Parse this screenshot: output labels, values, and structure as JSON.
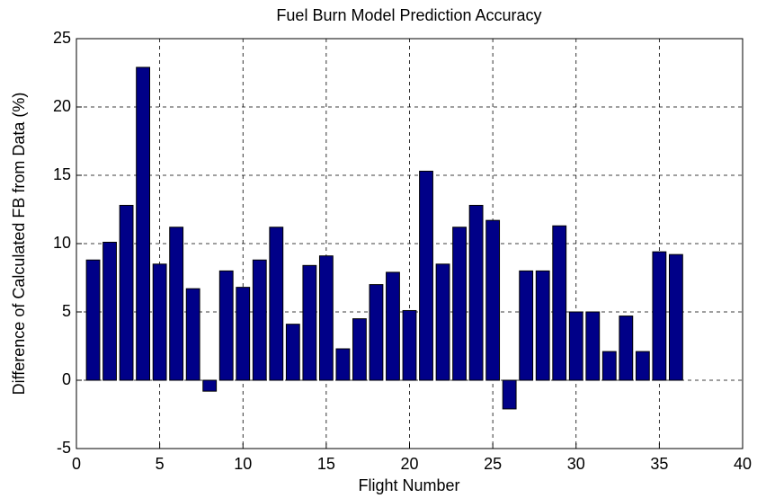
{
  "chart_data": {
    "type": "bar",
    "title": "Fuel Burn Model Prediction Accuracy",
    "xlabel": "Flight Number",
    "ylabel": "Difference of Calculated FB from Data (%)",
    "x": [
      1,
      2,
      3,
      4,
      5,
      6,
      7,
      8,
      9,
      10,
      11,
      12,
      13,
      14,
      15,
      16,
      17,
      18,
      19,
      20,
      21,
      22,
      23,
      24,
      25,
      26,
      27,
      28,
      29,
      30,
      31,
      32,
      33,
      34,
      35,
      36
    ],
    "values": [
      8.8,
      10.1,
      12.8,
      22.9,
      8.5,
      11.2,
      6.7,
      -0.8,
      8.0,
      6.8,
      8.8,
      11.2,
      4.1,
      8.4,
      9.1,
      2.3,
      4.5,
      7.0,
      7.9,
      5.1,
      15.3,
      8.5,
      11.2,
      12.8,
      11.7,
      -2.1,
      8.0,
      8.0,
      11.3,
      5.0,
      5.0,
      2.1,
      4.7,
      2.1,
      9.4,
      9.2
    ],
    "color": "#000088",
    "xlim": [
      0,
      40
    ],
    "xticks": [
      0,
      5,
      10,
      15,
      20,
      25,
      30,
      35,
      40
    ],
    "ylim": [
      -5,
      25
    ],
    "yticks": [
      -5,
      0,
      5,
      10,
      15,
      20,
      25
    ],
    "grid": true
  }
}
